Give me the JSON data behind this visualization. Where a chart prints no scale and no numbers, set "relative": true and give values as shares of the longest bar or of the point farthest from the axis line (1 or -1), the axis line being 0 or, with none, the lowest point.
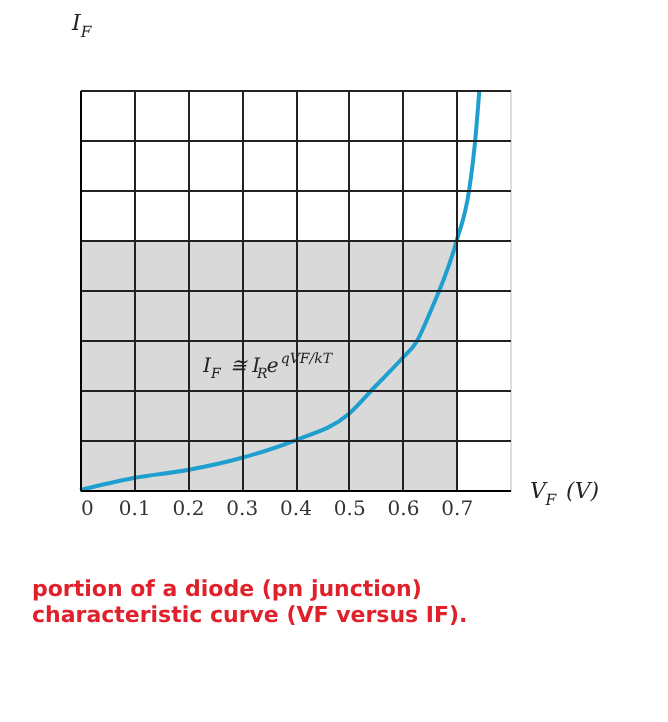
{
  "chart_data": {
    "type": "line",
    "title": "portion of a diode (pn junction) characteristic curve (VF versus IF).",
    "xlabel": "V$_{F}$ (V)",
    "ylabel": "I$_{F}$",
    "relative": true,
    "x": [
      0,
      0.1,
      0.2,
      0.3,
      0.4,
      0.5,
      0.55,
      0.6,
      0.626,
      0.65,
      0.7,
      0.724,
      0.735,
      0.743
    ],
    "series": [
      {
        "color": "#1e9fd0",
        "values": [
          0,
          0.03,
          0.05,
          0.08,
          0.124,
          0.19,
          0.26,
          0.33,
          0.37,
          0.44,
          0.62,
          0.75,
          0.87,
          1
        ]
      }
    ],
    "xlim": [
      0,
      0.8
    ],
    "xticks": [
      {
        "value": 0,
        "label": "0"
      },
      0.1,
      0.2,
      0.3,
      0.4,
      0.5,
      0.6,
      0.7
    ],
    "bands": [
      {
        "axis": "x",
        "from": 0,
        "to": 0.7,
        "color": "#d9d9d9"
      }
    ],
    "annotations": [
      "I$_{F}$ ≅ I$_{R}$e$^{qVF/kT}$"
    ],
    "grid": true,
    "tick_labels": "x",
    "line_style": "solid",
    "marker": "none"
  }
}
